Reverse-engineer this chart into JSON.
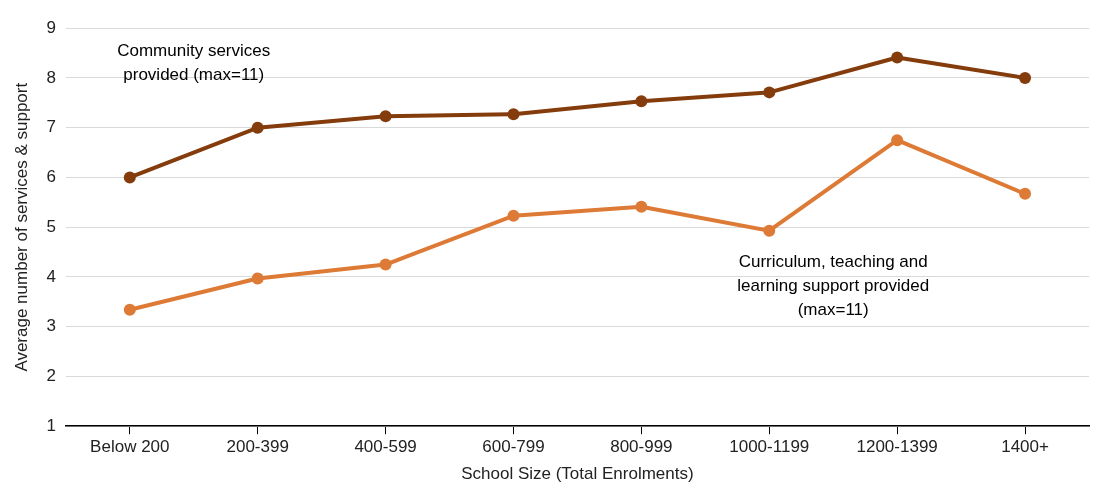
{
  "chart_data": {
    "type": "line",
    "xlabel": "School Size (Total Enrolments)",
    "ylabel": "Average number of services & support",
    "categories": [
      "Below 200",
      "200-399",
      "400-599",
      "600-799",
      "800-999",
      "1000-1199",
      "1200-1399",
      "1400+"
    ],
    "series": [
      {
        "name": "Community services provided (max=11)",
        "color": "#843c0c",
        "values": [
          6.0,
          7.0,
          7.23,
          7.27,
          7.53,
          7.71,
          8.41,
          8.0
        ]
      },
      {
        "name": "Curriculum, teaching and learning support provided (max=11)",
        "color": "#dd7a35",
        "values": [
          3.34,
          3.97,
          4.25,
          5.23,
          5.41,
          4.93,
          6.75,
          5.67
        ]
      }
    ],
    "ylim": [
      1,
      9
    ],
    "yticks": [
      1,
      2,
      3,
      4,
      5,
      6,
      7,
      8,
      9
    ],
    "grid": "y",
    "legend": false,
    "marker": "circle",
    "line_style": "solid"
  }
}
